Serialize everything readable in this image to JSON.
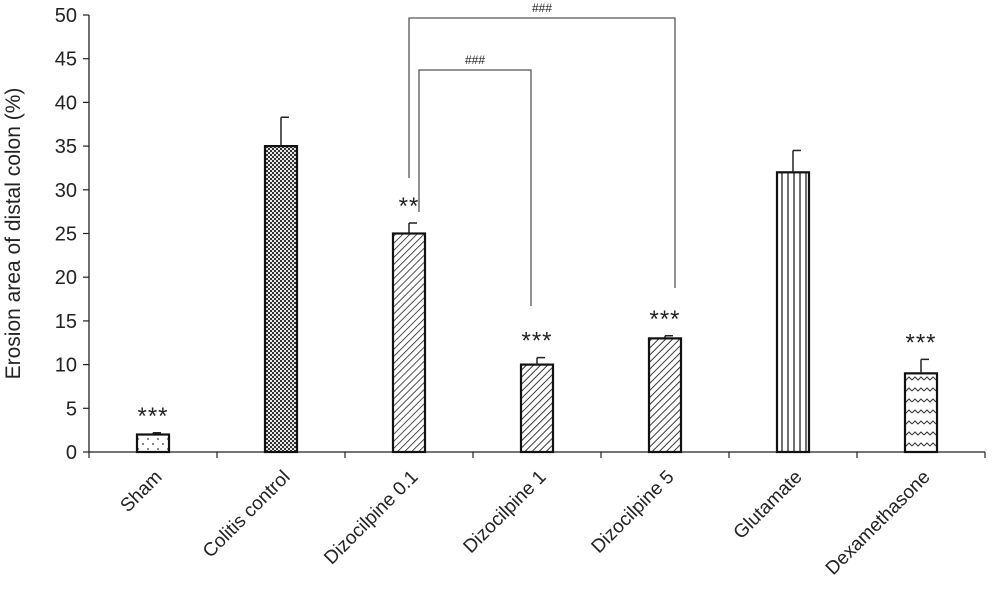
{
  "chart_data": {
    "type": "bar",
    "title": "",
    "xlabel": "",
    "ylabel": "Erosion area of distal colon (%)",
    "ylim": [
      0,
      50
    ],
    "yticks": [
      0,
      5,
      10,
      15,
      20,
      25,
      30,
      35,
      40,
      45,
      50
    ],
    "categories": [
      "Sham",
      "Colitis control",
      "Dizocilpine 0.1",
      "Dizocilpine 1",
      "Dizocilpine 5",
      "Glutamate",
      "Dexamethasone"
    ],
    "values": [
      2,
      35,
      25,
      10,
      13,
      32,
      9
    ],
    "errors": [
      0.2,
      3.3,
      1.2,
      0.8,
      0.3,
      2.5,
      1.6
    ],
    "patterns": [
      "dots",
      "checker",
      "diag-dense",
      "diag",
      "diag",
      "vertical",
      "wave"
    ],
    "significance": [
      "***",
      "",
      "**",
      "***",
      "***",
      "",
      "***"
    ],
    "brackets": [
      {
        "from": 2,
        "to": 4,
        "label": "###"
      },
      {
        "from": 2,
        "to": 3,
        "label": "###"
      }
    ],
    "grid": false,
    "legend": "none"
  }
}
